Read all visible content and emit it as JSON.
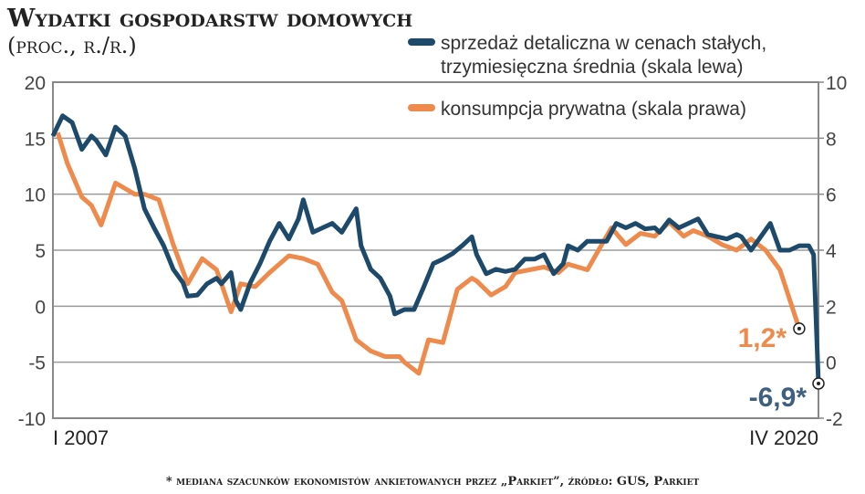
{
  "chart_data": {
    "type": "line",
    "title": "Wydatki gospodarstw domowych",
    "subtitle": "(proc., r./r.)",
    "x_unit": "months since I 2007",
    "xlim": [
      0,
      159
    ],
    "x_tick_labels": [
      "I 2007",
      "IV 2020"
    ],
    "y_left": {
      "lim": [
        -10,
        20
      ],
      "ticks": [
        -10,
        -5,
        0,
        5,
        10,
        15,
        20
      ]
    },
    "y_right": {
      "lim": [
        -2,
        10
      ],
      "ticks": [
        -2,
        0,
        2,
        4,
        6,
        8,
        10
      ]
    },
    "grid": true,
    "legend_position": "top-right",
    "series": [
      {
        "name": "sprzedaż detaliczna w cenach stałych, trzymiesięczna średnia (skala lewa)",
        "legend_lines": [
          "sprzedaż detaliczna w cenach stałych,",
          "trzymiesięczna średnia (skala lewa)"
        ],
        "axis": "left",
        "color": "#1d4a6b",
        "x": [
          0,
          2,
          4,
          6,
          8,
          9,
          11,
          13,
          15,
          17,
          19,
          21,
          23,
          25,
          27,
          28,
          30,
          32,
          34,
          35,
          37,
          38,
          39,
          41,
          43,
          45,
          47,
          49,
          51,
          52,
          54,
          56,
          58,
          60,
          63,
          64,
          66,
          68,
          70,
          71,
          73,
          75,
          77,
          79,
          81,
          83,
          85,
          87,
          88,
          90,
          92,
          94,
          96,
          98,
          100,
          102,
          104,
          106,
          107,
          109,
          111,
          113,
          115,
          117,
          119,
          121,
          123,
          125,
          126,
          128,
          130,
          132,
          134,
          136,
          138,
          140,
          142,
          143,
          145,
          147,
          149,
          151,
          153,
          155,
          157,
          158,
          159
        ],
        "y": [
          15.2,
          17,
          16.4,
          14,
          15.2,
          14.8,
          13.5,
          16,
          15.2,
          12.3,
          8.7,
          7,
          5.4,
          3.3,
          2.1,
          0.9,
          1,
          2,
          2.5,
          2,
          3,
          0.5,
          -0.3,
          2.1,
          3.8,
          5.8,
          7.4,
          6,
          7.8,
          9.5,
          6.6,
          7,
          7.4,
          6.6,
          8.7,
          5.4,
          3.3,
          2.5,
          0.9,
          -0.7,
          -0.3,
          -0.3,
          1.7,
          3.8,
          4.2,
          4.7,
          5.4,
          6.2,
          4.6,
          2.9,
          3.3,
          3.1,
          3.3,
          4.2,
          4.2,
          4.6,
          2.9,
          3.8,
          5.4,
          5,
          5.8,
          5.8,
          5.8,
          7.4,
          7,
          7.4,
          6.9,
          7,
          6.6,
          7.7,
          7,
          7.4,
          7.8,
          6.4,
          6.2,
          6,
          6.4,
          6.2,
          5,
          6.2,
          7.4,
          5,
          5,
          5.4,
          5.4,
          4.6,
          -6.9
        ],
        "end_label": "-6,9*"
      },
      {
        "name": "konsumpcja prywatna (skala prawa)",
        "legend_lines": [
          "konsumpcja prywatna (skala prawa)"
        ],
        "axis": "right",
        "color": "#ee8a4b",
        "x": [
          1,
          3,
          5,
          6,
          8,
          10,
          13,
          15,
          17,
          19,
          22,
          25,
          28,
          31,
          34,
          37,
          39,
          42,
          45,
          49,
          52,
          55,
          58,
          60,
          63,
          66,
          69,
          72,
          73,
          76,
          78,
          81,
          84,
          87,
          88,
          91,
          94,
          96,
          99,
          102,
          105,
          107,
          111,
          114,
          116,
          119,
          122,
          125,
          128,
          131,
          133,
          136,
          139,
          142,
          145,
          148,
          151,
          155
        ],
        "y": [
          8.2,
          7.1,
          6.3,
          5.9,
          5.6,
          4.9,
          6.4,
          6.2,
          6,
          6,
          5.8,
          4.2,
          2.8,
          3.7,
          3.3,
          1.8,
          2.8,
          2.7,
          3.2,
          3.8,
          3.7,
          3.5,
          2.5,
          2.2,
          0.8,
          0.4,
          0.2,
          0.2,
          0,
          -0.4,
          0.8,
          0.7,
          2.6,
          3,
          2.9,
          2.4,
          2.7,
          3.2,
          3.3,
          3.4,
          3.2,
          3.5,
          3.3,
          4.2,
          4.8,
          4.2,
          4.6,
          4.5,
          5,
          4.5,
          4.7,
          4.5,
          4.2,
          4,
          4.4,
          4,
          3.3,
          1.2
        ],
        "end_label": "1,2*"
      }
    ],
    "footnote": "* mediana szacunków ekonomistów ankietowanych przez „Parkiet”, źródło: GUS, Parkiet"
  }
}
